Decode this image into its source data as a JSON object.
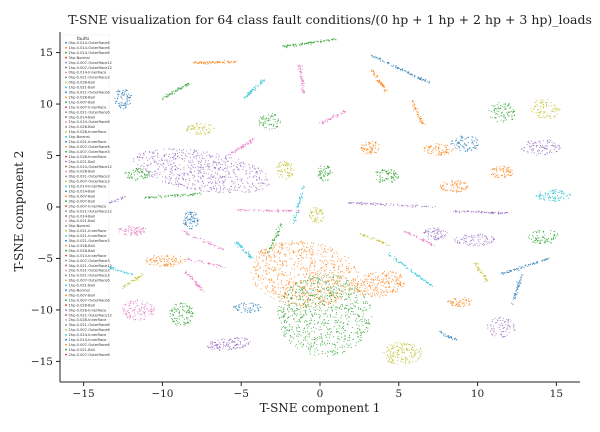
{
  "chart_data": {
    "type": "scatter",
    "title": "T-SNE visualization for 64 class fault conditions/(0 hp + 1 hp + 2 hp + 3 hp)_loads",
    "xlabel": "T-SNE component 1",
    "ylabel": "T-SNE component 2",
    "xlim": [
      -16.5,
      16.5
    ],
    "ylim": [
      -17,
      17
    ],
    "xticks": [
      -15,
      -10,
      -5,
      0,
      5,
      10,
      15
    ],
    "yticks": [
      -15,
      -10,
      -5,
      0,
      5,
      10,
      15
    ],
    "legend_title": "faults",
    "legend_placement": "upper-left",
    "legend": [
      "0hp-0.014-OuterRace6",
      "1hp-0.014-OuterRace6",
      "2hp-0.014-OuterRace6",
      "3hp-Normal",
      "2hp-0.007-OuterRace12",
      "1hp-0.007-OuterRace12",
      "0hp-0.014-InnerRace",
      "0hp-0.021-OuterRace3",
      "0hp-0.028-Ball",
      "1hp-0.021-Ball",
      "3hp-0.021-OuterRace6",
      "2hp-0.028-Ball",
      "1hp-0.007-Ball",
      "1hp-0.007-InnerRace",
      "0hp-0.021-OuterRace6",
      "3hp-0.014-Ball",
      "1hp-0.014-OuterRace6",
      "2hp-0.028-Ball",
      "1hp-0.028-InnerRace",
      "1hp-Normal",
      "2hp-0.021-InnerRace",
      "3hp-0.007-OuterRace6",
      "0hp-0.007-OuterRace3",
      "1hp-0.028-InnerRace",
      "2hp-0.021-Ball",
      "2hp-0.014-OuterRace12",
      "3hp-0.028-Ball",
      "0hp-0.021-OuterRace3",
      "3hp-0.007-OuterRace3",
      "1hp-0.014-InnerRace",
      "2hp-0.014-Ball",
      "0hp-0.007-Ball",
      "3hp-0.007-Ball",
      "2hp-0.007-InnerRace",
      "3hp-0.021-OuterRace12",
      "2hp-0.014-Ball",
      "3hp-0.021-Ball",
      "0hp-Normal",
      "3hp-0.021-InnerRace",
      "0hp-0.021-InnerRace",
      "3hp-0.021-OuterRace3",
      "1hp-0.028-Ball",
      "0hp-0.028-Ball",
      "3hp-0.014-InnerRace",
      "2hp-0.007-OuterRace3",
      "3hp-0.021-OuterRace12",
      "2hp-0.021-OuterRace3",
      "1hp-0.021-OuterRace3",
      "3hp-0.007-OuterRace6",
      "1hp-0.021-Ball",
      "2hp-Normal",
      "0hp-0.007-Ball",
      "1hp-0.007-OuterRace6",
      "1hp-0.028-Ball",
      "0hp-0.028-InnerRace",
      "0hp-0.021-OuterRace12",
      "2hp-0.028-InnerRace",
      "3hp-0.021-OuterRace6",
      "1hp-0.007-OuterRace6",
      "2hp-0.024-InnerRace",
      "1hp-0.014-InnerRace",
      "1hp-0.007-OuterRace6",
      "1hp-0.021-Ball",
      "2hp-0.007-OuterRace6"
    ],
    "palette": [
      "#1f77b4",
      "#ff7f0e",
      "#2ca02c",
      "#d62728",
      "#9467bd",
      "#8c564b",
      "#e377c2",
      "#7f7f7f",
      "#bcbd22",
      "#17becf"
    ],
    "clusters": [
      {
        "shape": "blob",
        "x": -7.5,
        "y": 3.5,
        "w": 4.5,
        "h": 1.9,
        "angle": -15,
        "n": 650,
        "c": 4
      },
      {
        "shape": "blob",
        "x": -1.0,
        "y": -6.5,
        "w": 3.6,
        "h": 3.1,
        "angle": -30,
        "n": 750,
        "c": 1
      },
      {
        "shape": "blob",
        "x": 0.3,
        "y": -10.5,
        "w": 3.0,
        "h": 4.0,
        "angle": 0,
        "n": 800,
        "c": 2
      },
      {
        "shape": "blob",
        "x": 3.8,
        "y": -7.5,
        "w": 1.7,
        "h": 1.2,
        "angle": 20,
        "n": 220,
        "c": 1
      },
      {
        "shape": "blob",
        "x": 5.2,
        "y": -14.2,
        "w": 1.3,
        "h": 1.1,
        "angle": 0,
        "n": 170,
        "c": 8
      },
      {
        "shape": "blob",
        "x": -5.8,
        "y": -13.3,
        "w": 1.4,
        "h": 0.6,
        "angle": 10,
        "n": 130,
        "c": 4
      },
      {
        "shape": "blob",
        "x": -11.5,
        "y": -10.0,
        "w": 1.1,
        "h": 1.0,
        "angle": 0,
        "n": 120,
        "c": 6
      },
      {
        "shape": "blob",
        "x": -8.8,
        "y": -10.4,
        "w": 0.8,
        "h": 1.2,
        "angle": 0,
        "n": 110,
        "c": 2
      },
      {
        "shape": "blob",
        "x": -9.8,
        "y": -5.2,
        "w": 1.3,
        "h": 0.6,
        "angle": 0,
        "n": 100,
        "c": 1
      },
      {
        "shape": "blob",
        "x": -8.2,
        "y": -1.3,
        "w": 0.5,
        "h": 0.9,
        "angle": 0,
        "n": 80,
        "c": 0
      },
      {
        "shape": "blob",
        "x": -11.9,
        "y": -2.3,
        "w": 0.9,
        "h": 0.5,
        "angle": 0,
        "n": 80,
        "c": 6
      },
      {
        "shape": "blob",
        "x": -11.6,
        "y": 3.2,
        "w": 0.8,
        "h": 0.6,
        "angle": 0,
        "n": 70,
        "c": 2
      },
      {
        "shape": "blob",
        "x": -12.5,
        "y": 10.5,
        "w": 0.6,
        "h": 1.0,
        "angle": 0,
        "n": 80,
        "c": 0
      },
      {
        "shape": "blob",
        "x": -7.6,
        "y": 7.6,
        "w": 0.9,
        "h": 0.6,
        "angle": 0,
        "n": 70,
        "c": 8
      },
      {
        "shape": "blob",
        "x": -3.2,
        "y": 8.3,
        "w": 0.7,
        "h": 0.8,
        "angle": 0,
        "n": 70,
        "c": 2
      },
      {
        "shape": "blob",
        "x": -2.2,
        "y": 3.6,
        "w": 0.6,
        "h": 0.9,
        "angle": 0,
        "n": 70,
        "c": 8
      },
      {
        "shape": "blob",
        "x": 0.3,
        "y": 3.3,
        "w": 0.5,
        "h": 0.8,
        "angle": 0,
        "n": 60,
        "c": 2
      },
      {
        "shape": "blob",
        "x": 3.2,
        "y": 5.8,
        "w": 0.6,
        "h": 0.7,
        "angle": 0,
        "n": 70,
        "c": 1
      },
      {
        "shape": "blob",
        "x": 4.2,
        "y": 3.0,
        "w": 0.8,
        "h": 0.7,
        "angle": 0,
        "n": 80,
        "c": 2
      },
      {
        "shape": "blob",
        "x": 7.5,
        "y": 5.6,
        "w": 1.0,
        "h": 0.6,
        "angle": 0,
        "n": 80,
        "c": 1
      },
      {
        "shape": "blob",
        "x": 9.2,
        "y": 6.2,
        "w": 0.9,
        "h": 0.8,
        "angle": 0,
        "n": 80,
        "c": 0
      },
      {
        "shape": "blob",
        "x": 11.6,
        "y": 9.2,
        "w": 0.9,
        "h": 1.0,
        "angle": 0,
        "n": 90,
        "c": 2
      },
      {
        "shape": "blob",
        "x": 14.3,
        "y": 9.5,
        "w": 1.0,
        "h": 1.0,
        "angle": 0,
        "n": 90,
        "c": 8
      },
      {
        "shape": "blob",
        "x": 8.5,
        "y": 2.0,
        "w": 0.9,
        "h": 0.6,
        "angle": 0,
        "n": 80,
        "c": 1
      },
      {
        "shape": "blob",
        "x": 11.5,
        "y": 3.4,
        "w": 0.8,
        "h": 0.6,
        "angle": 0,
        "n": 70,
        "c": 1
      },
      {
        "shape": "blob",
        "x": 14.0,
        "y": 5.8,
        "w": 1.3,
        "h": 0.8,
        "angle": 0,
        "n": 100,
        "c": 4
      },
      {
        "shape": "blob",
        "x": 14.8,
        "y": 1.1,
        "w": 1.1,
        "h": 0.6,
        "angle": 0,
        "n": 90,
        "c": 9
      },
      {
        "shape": "blob",
        "x": 9.8,
        "y": -3.2,
        "w": 1.3,
        "h": 0.6,
        "angle": 0,
        "n": 90,
        "c": 4
      },
      {
        "shape": "blob",
        "x": 14.2,
        "y": -2.9,
        "w": 1.0,
        "h": 0.7,
        "angle": 0,
        "n": 80,
        "c": 2
      },
      {
        "shape": "blob",
        "x": 7.3,
        "y": -2.6,
        "w": 0.8,
        "h": 0.6,
        "angle": 0,
        "n": 70,
        "c": 4
      },
      {
        "shape": "blob",
        "x": -4.6,
        "y": -9.8,
        "w": 0.9,
        "h": 0.5,
        "angle": 0,
        "n": 60,
        "c": 0
      },
      {
        "shape": "blob",
        "x": 11.5,
        "y": -11.7,
        "w": 0.9,
        "h": 1.0,
        "angle": 0,
        "n": 80,
        "c": 4
      },
      {
        "shape": "blob",
        "x": 8.9,
        "y": -9.2,
        "w": 0.8,
        "h": 0.5,
        "angle": 0,
        "n": 60,
        "c": 1
      },
      {
        "shape": "blob",
        "x": -0.2,
        "y": -0.8,
        "w": 0.5,
        "h": 0.8,
        "angle": 0,
        "n": 60,
        "c": 8
      },
      {
        "shape": "line",
        "x1": -8.0,
        "y1": 14.0,
        "x2": -5.3,
        "y2": 14.1,
        "n": 80,
        "c": 1
      },
      {
        "shape": "line",
        "x1": -2.3,
        "y1": 15.6,
        "x2": 1.0,
        "y2": 16.3,
        "n": 90,
        "c": 2
      },
      {
        "shape": "line",
        "x1": 3.2,
        "y1": 14.8,
        "x2": 7.0,
        "y2": 12.0,
        "n": 90,
        "c": 0
      },
      {
        "shape": "line",
        "x1": -1.0,
        "y1": 11.0,
        "x2": -1.3,
        "y2": 14.0,
        "n": 60,
        "c": 6
      },
      {
        "shape": "line",
        "x1": 3.3,
        "y1": 13.3,
        "x2": 4.2,
        "y2": 11.2,
        "n": 60,
        "c": 1
      },
      {
        "shape": "line",
        "x1": -10.0,
        "y1": 10.5,
        "x2": -8.2,
        "y2": 12.1,
        "n": 60,
        "c": 2
      },
      {
        "shape": "line",
        "x1": -4.8,
        "y1": 10.6,
        "x2": -3.6,
        "y2": 12.3,
        "n": 60,
        "c": 9
      },
      {
        "shape": "line",
        "x1": 0.0,
        "y1": 8.1,
        "x2": 1.6,
        "y2": 9.3,
        "n": 50,
        "c": 6
      },
      {
        "shape": "line",
        "x1": -5.8,
        "y1": 5.0,
        "x2": -4.1,
        "y2": 6.7,
        "n": 60,
        "c": 6
      },
      {
        "shape": "line",
        "x1": 5.8,
        "y1": 10.3,
        "x2": 6.6,
        "y2": 7.9,
        "n": 50,
        "c": 1
      },
      {
        "shape": "line",
        "x1": -11.2,
        "y1": 0.9,
        "x2": -7.4,
        "y2": 1.3,
        "n": 70,
        "c": 2
      },
      {
        "shape": "line",
        "x1": -5.2,
        "y1": -0.3,
        "x2": -1.2,
        "y2": -0.4,
        "n": 70,
        "c": 6
      },
      {
        "shape": "line",
        "x1": -1.0,
        "y1": 2.2,
        "x2": -1.7,
        "y2": -1.6,
        "n": 50,
        "c": 9
      },
      {
        "shape": "line",
        "x1": 1.8,
        "y1": 0.4,
        "x2": 7.3,
        "y2": 0.0,
        "n": 80,
        "c": 4
      },
      {
        "shape": "line",
        "x1": 8.5,
        "y1": -0.4,
        "x2": 11.9,
        "y2": -0.6,
        "n": 70,
        "c": 4
      },
      {
        "shape": "line",
        "x1": -5.3,
        "y1": -3.4,
        "x2": -4.3,
        "y2": -5.0,
        "n": 50,
        "c": 9
      },
      {
        "shape": "line",
        "x1": -8.7,
        "y1": -2.4,
        "x2": -6.0,
        "y2": -4.2,
        "n": 50,
        "c": 6
      },
      {
        "shape": "line",
        "x1": -2.4,
        "y1": -1.5,
        "x2": -3.3,
        "y2": -4.5,
        "n": 50,
        "c": 2
      },
      {
        "shape": "line",
        "x1": -14.4,
        "y1": -5.3,
        "x2": -11.9,
        "y2": -6.6,
        "n": 60,
        "c": 9
      },
      {
        "shape": "line",
        "x1": -8.5,
        "y1": -6.3,
        "x2": -7.4,
        "y2": -8.2,
        "n": 50,
        "c": 6
      },
      {
        "shape": "line",
        "x1": 4.3,
        "y1": -4.5,
        "x2": 7.3,
        "y2": -7.9,
        "n": 70,
        "c": 9
      },
      {
        "shape": "line",
        "x1": 11.5,
        "y1": -6.5,
        "x2": 14.5,
        "y2": -5.0,
        "n": 70,
        "c": 0
      },
      {
        "shape": "line",
        "x1": 12.2,
        "y1": -9.5,
        "x2": 12.8,
        "y2": -6.6,
        "n": 50,
        "c": 0
      },
      {
        "shape": "line",
        "x1": 5.3,
        "y1": -2.3,
        "x2": 7.2,
        "y2": -3.7,
        "n": 50,
        "c": 6
      },
      {
        "shape": "line",
        "x1": 2.6,
        "y1": -2.6,
        "x2": 4.4,
        "y2": -3.7,
        "n": 40,
        "c": 8
      },
      {
        "shape": "line",
        "x1": -11.2,
        "y1": -6.5,
        "x2": -12.5,
        "y2": -7.8,
        "n": 40,
        "c": 8
      },
      {
        "shape": "line",
        "x1": 9.8,
        "y1": -5.4,
        "x2": 10.6,
        "y2": -7.2,
        "n": 40,
        "c": 8
      },
      {
        "shape": "line",
        "x1": 7.6,
        "y1": -12.2,
        "x2": 8.6,
        "y2": -12.9,
        "n": 30,
        "c": 0
      },
      {
        "shape": "line",
        "x1": -8.4,
        "y1": -5.0,
        "x2": -6.0,
        "y2": -5.9,
        "n": 40,
        "c": 6
      },
      {
        "shape": "line",
        "x1": -13.8,
        "y1": 0.2,
        "x2": -12.3,
        "y2": 1.0,
        "n": 30,
        "c": 4
      }
    ]
  }
}
